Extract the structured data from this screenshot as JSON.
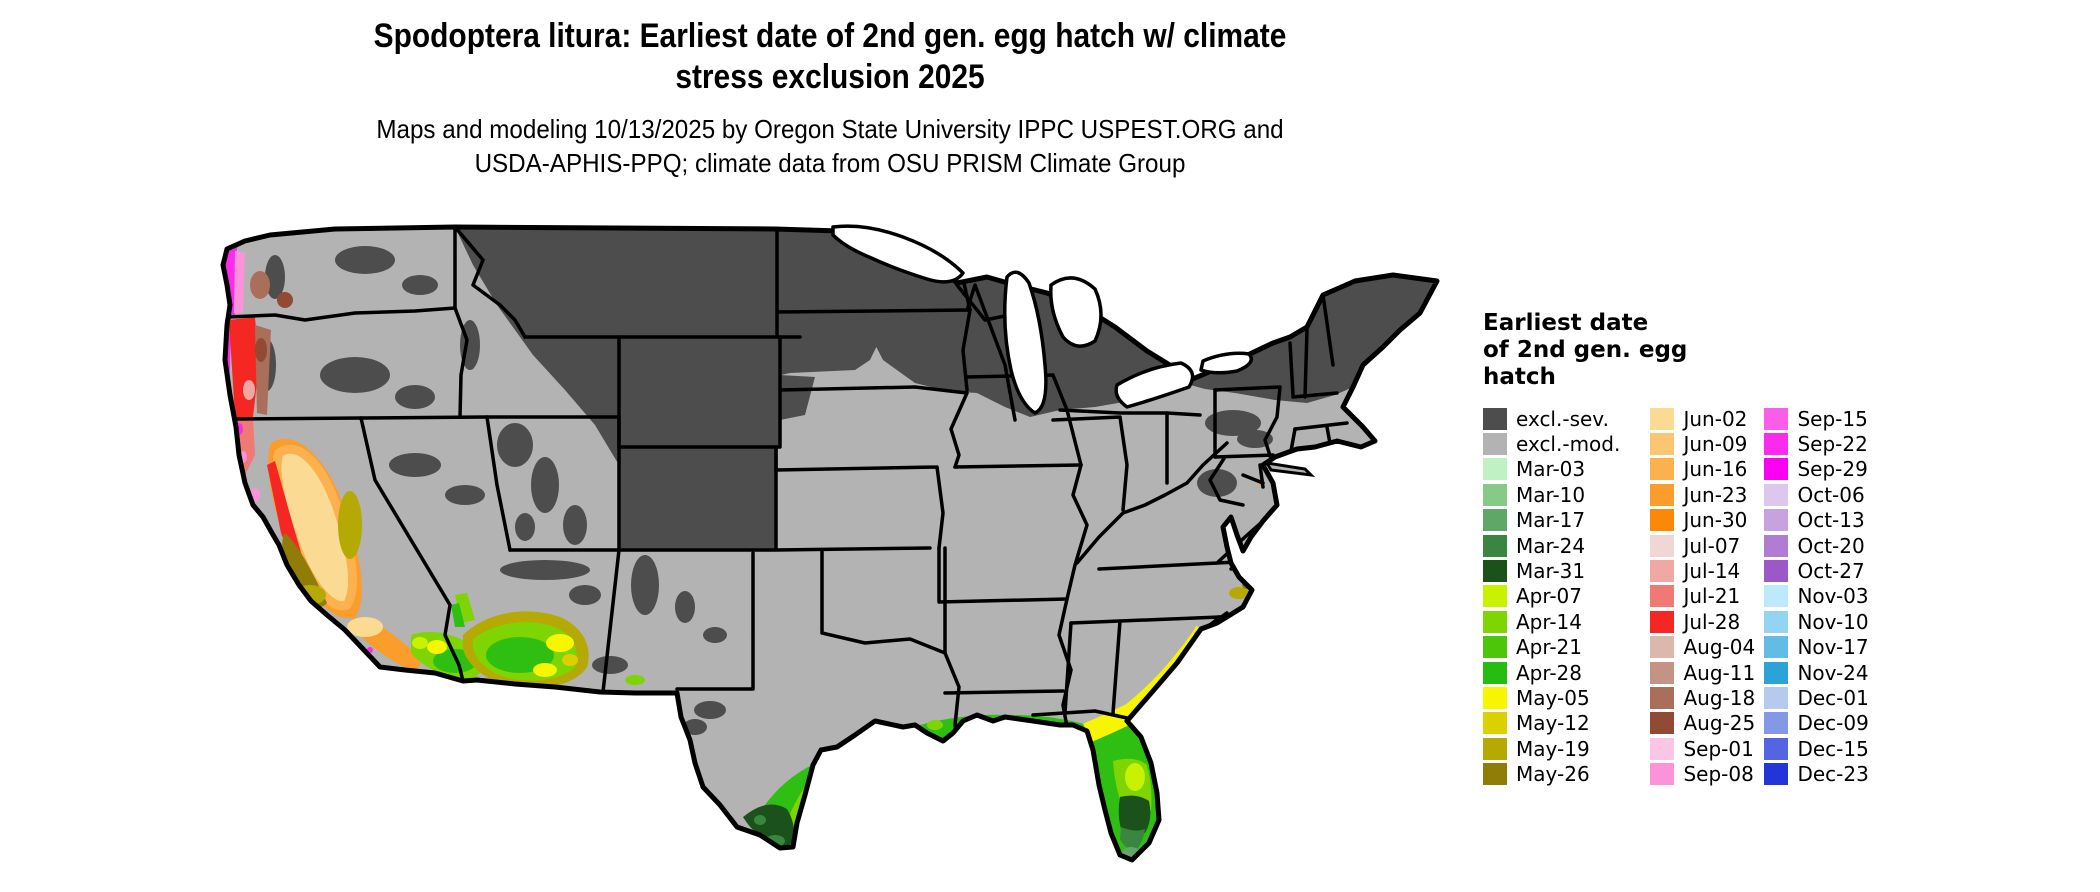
{
  "header": {
    "title_line1": "Spodoptera litura: Earliest date of 2nd gen. egg hatch w/ climate",
    "title_line2": "stress exclusion 2025",
    "subtitle_line1": "Maps and modeling 10/13/2025 by Oregon State University IPPC USPEST.ORG and",
    "subtitle_line2": "USDA-APHIS-PPQ; climate data from OSU PRISM Climate Group"
  },
  "legend": {
    "title_lines": [
      "Earliest date",
      "of 2nd gen. egg",
      "hatch"
    ],
    "columns": [
      [
        {
          "label": "excl.-sev.",
          "color": "#4D4D4D"
        },
        {
          "label": "excl.-mod.",
          "color": "#B3B3B3"
        },
        {
          "label": "Mar-03",
          "color": "#BFF1C5"
        },
        {
          "label": "Mar-10",
          "color": "#86CA86"
        },
        {
          "label": "Mar-17",
          "color": "#5FA767"
        },
        {
          "label": "Mar-24",
          "color": "#3A8540"
        },
        {
          "label": "Mar-31",
          "color": "#1B521B"
        },
        {
          "label": "Apr-07",
          "color": "#C9F102"
        },
        {
          "label": "Apr-14",
          "color": "#7FD404"
        },
        {
          "label": "Apr-21",
          "color": "#4AC708"
        },
        {
          "label": "Apr-28",
          "color": "#26BC10"
        },
        {
          "label": "May-05",
          "color": "#F8F500"
        },
        {
          "label": "May-12",
          "color": "#DCD100"
        },
        {
          "label": "May-19",
          "color": "#B5A904"
        },
        {
          "label": "May-26",
          "color": "#8F7D08"
        }
      ],
      [
        {
          "label": "Jun-02",
          "color": "#FBDA94"
        },
        {
          "label": "Jun-09",
          "color": "#FBC671"
        },
        {
          "label": "Jun-16",
          "color": "#FBB14E"
        },
        {
          "label": "Jun-23",
          "color": "#FB9D2B"
        },
        {
          "label": "Jun-30",
          "color": "#FB8807"
        },
        {
          "label": "Jul-07",
          "color": "#F0D6D4"
        },
        {
          "label": "Jul-14",
          "color": "#F0A8A4"
        },
        {
          "label": "Jul-21",
          "color": "#F07973"
        },
        {
          "label": "Jul-28",
          "color": "#F52722"
        },
        {
          "label": "Aug-04",
          "color": "#DCB7AC"
        },
        {
          "label": "Aug-11",
          "color": "#C39384"
        },
        {
          "label": "Aug-18",
          "color": "#AA6F5B"
        },
        {
          "label": "Aug-25",
          "color": "#914A33"
        },
        {
          "label": "Sep-01",
          "color": "#FBC6E5"
        },
        {
          "label": "Sep-08",
          "color": "#FB92DA"
        }
      ],
      [
        {
          "label": "Sep-15",
          "color": "#FA5EE8"
        },
        {
          "label": "Sep-22",
          "color": "#FA2BED"
        },
        {
          "label": "Sep-29",
          "color": "#FA00F2"
        },
        {
          "label": "Oct-06",
          "color": "#DCC8EC"
        },
        {
          "label": "Oct-13",
          "color": "#C6A3E0"
        },
        {
          "label": "Oct-20",
          "color": "#B17DD3"
        },
        {
          "label": "Oct-27",
          "color": "#9C58C6"
        },
        {
          "label": "Nov-03",
          "color": "#BDE9FA"
        },
        {
          "label": "Nov-10",
          "color": "#92D4F2"
        },
        {
          "label": "Nov-17",
          "color": "#62BCE5"
        },
        {
          "label": "Nov-24",
          "color": "#2BA2D8"
        },
        {
          "label": "Dec-01",
          "color": "#B4CBEE"
        },
        {
          "label": "Dec-09",
          "color": "#8399E8"
        },
        {
          "label": "Dec-15",
          "color": "#5166E0"
        },
        {
          "label": "Dec-23",
          "color": "#2135D8"
        }
      ]
    ]
  },
  "map_colors": {
    "ocean": "#FFFFFF",
    "excluded_moderate_base": "#B3B3B3",
    "excluded_severe": "#4D4D4D",
    "state_border": "#000000"
  }
}
